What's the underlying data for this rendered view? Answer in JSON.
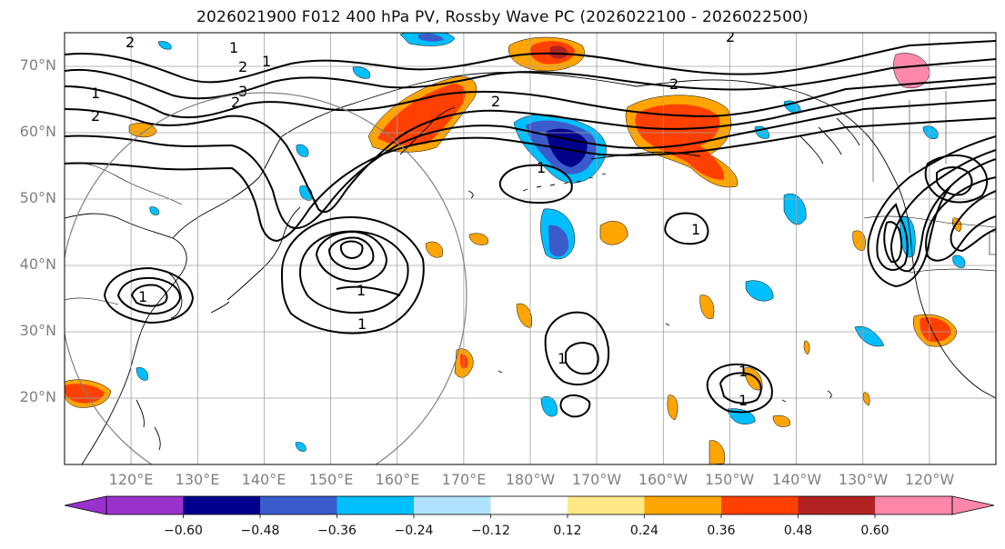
{
  "title": "2026021900 F012 400 hPa PV, Rossby Wave PC (2026022100 - 2026022500)",
  "map": {
    "region": "North Pacific",
    "lon_range": [
      110,
      250
    ],
    "lat_range": [
      10,
      75
    ],
    "lat_labels": [
      "70°N",
      "60°N",
      "50°N",
      "40°N",
      "30°N",
      "20°N"
    ],
    "lon_labels": [
      "120°E",
      "130°E",
      "140°E",
      "150°E",
      "160°E",
      "170°E",
      "180°W",
      "170°W",
      "160°W",
      "150°W",
      "140°W",
      "130°W",
      "120°W"
    ],
    "contour_labels": [
      "2",
      "2",
      "1",
      "1",
      "2",
      "2",
      "3",
      "2",
      "2",
      "2",
      "1",
      "1",
      "1",
      "1",
      "1",
      "1",
      "1",
      "1",
      "1"
    ],
    "colors": {
      "land_outline": "#000000",
      "grid": "#a0a0a0",
      "contour": "#000000",
      "circle": "#808080"
    }
  },
  "colorbar": {
    "ticks": [
      "−0.60",
      "−0.48",
      "−0.36",
      "−0.24",
      "−0.12",
      "0.12",
      "0.24",
      "0.36",
      "0.48",
      "0.60"
    ],
    "colors": [
      "#9932cc",
      "#00008b",
      "#3b5bcc",
      "#00bfff",
      "#b0e2ff",
      "#ffffff",
      "#ffe888",
      "#ffa500",
      "#ff4000",
      "#b22222",
      "#ff88aa"
    ]
  }
}
